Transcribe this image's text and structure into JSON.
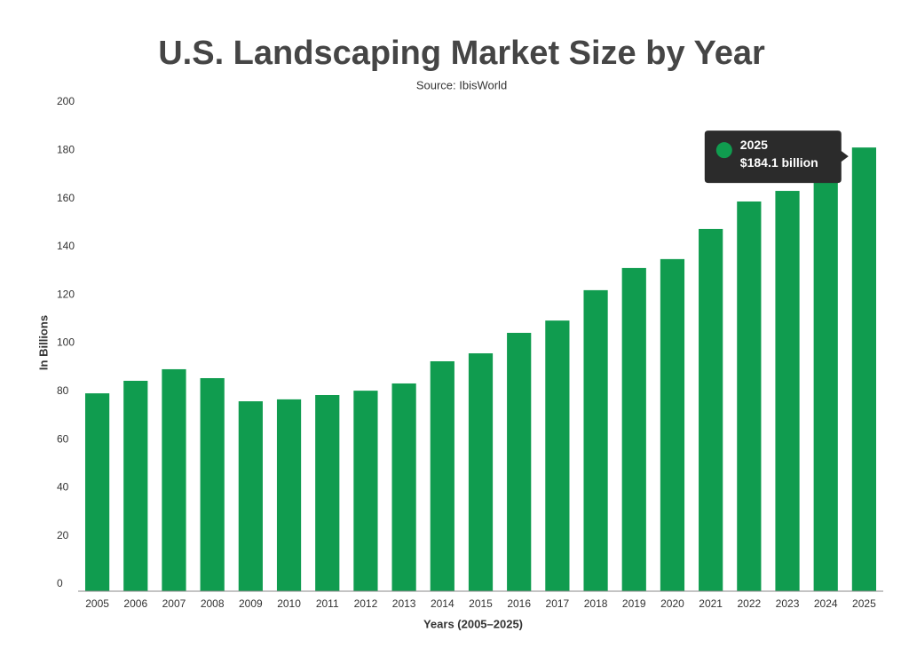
{
  "chart_data": {
    "type": "bar",
    "title": "U.S. Landscaping Market Size by Year",
    "subtitle": "Source: IbisWorld",
    "x_label": "Years (2005–2025)",
    "y_label": "In Billions",
    "categories": [
      "2005",
      "2006",
      "2007",
      "2008",
      "2009",
      "2010",
      "2011",
      "2012",
      "2013",
      "2014",
      "2015",
      "2016",
      "2017",
      "2018",
      "2019",
      "2020",
      "2021",
      "2022",
      "2023",
      "2024",
      "2025"
    ],
    "values": [
      82.1,
      87.3,
      92.1,
      88.4,
      78.8,
      79.6,
      81.4,
      83.2,
      86.2,
      95.4,
      98.7,
      107.2,
      112.3,
      124.9,
      134.1,
      137.8,
      150.3,
      161.7,
      166.1,
      175,
      184.1
    ],
    "color": "#109c4f",
    "ylim": [
      0,
      200
    ],
    "yticks": [
      0,
      20,
      40,
      60,
      80,
      100,
      120,
      140,
      160,
      180,
      200
    ],
    "grid": false,
    "tooltip": {
      "title": "2025",
      "text": "$184.1 billion"
    }
  }
}
